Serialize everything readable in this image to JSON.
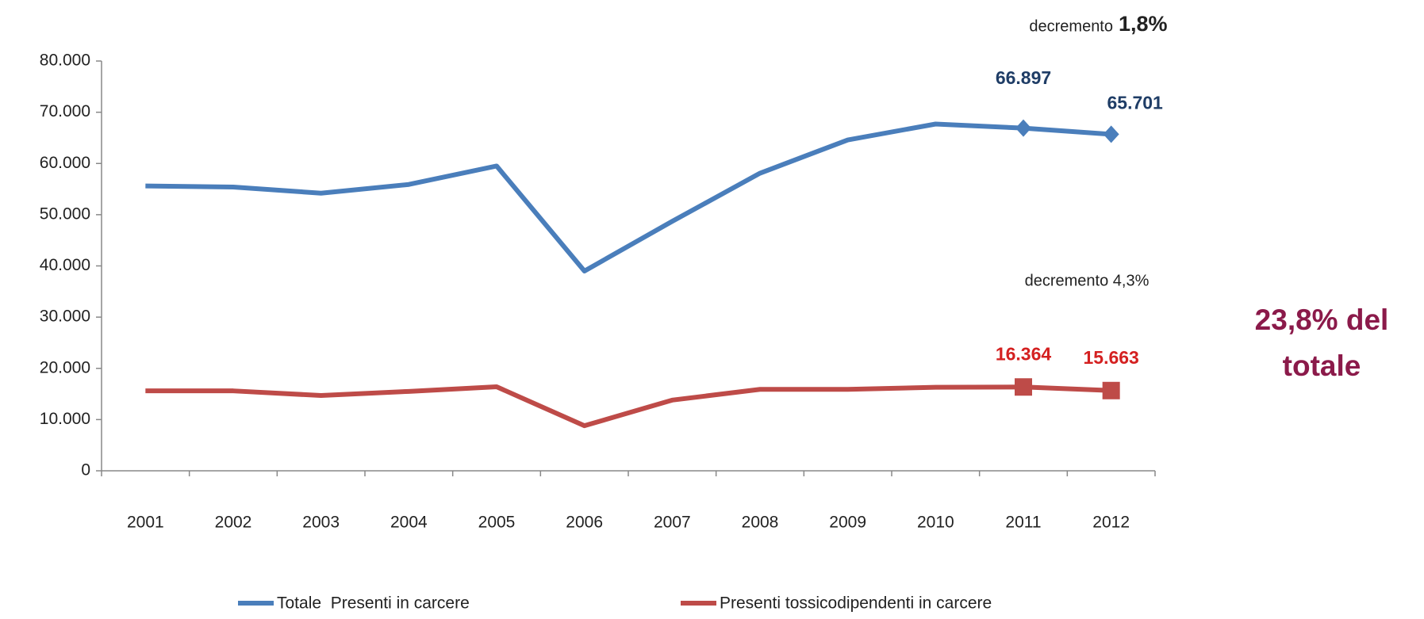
{
  "chart_data": {
    "type": "line",
    "categories": [
      "2001",
      "2002",
      "2003",
      "2004",
      "2005",
      "2006",
      "2007",
      "2008",
      "2009",
      "2010",
      "2011",
      "2012"
    ],
    "series": [
      {
        "name": "Totale  Presenti in carcere",
        "color": "#4a7ebb",
        "values": [
          55600,
          55400,
          54200,
          55900,
          59500,
          39000,
          48700,
          58100,
          64600,
          67700,
          66897,
          65701
        ],
        "value_labels": [
          null,
          null,
          null,
          null,
          null,
          null,
          null,
          null,
          null,
          null,
          "66.897",
          "65.701"
        ]
      },
      {
        "name": "Presenti tossicodipendenti in carcere",
        "color": "#be4b48",
        "values": [
          15600,
          15600,
          14700,
          15500,
          16400,
          8800,
          13800,
          15900,
          15900,
          16300,
          16364,
          15663
        ],
        "value_labels": [
          null,
          null,
          null,
          null,
          null,
          null,
          null,
          null,
          null,
          null,
          "16.364",
          "15.663"
        ]
      }
    ],
    "ylim": [
      0,
      80000
    ],
    "yticks": [
      0,
      {
        "value": 10000,
        "label": "10.000"
      },
      {
        "value": 20000,
        "label": "20.000"
      },
      {
        "value": 30000,
        "label": "30.000"
      },
      {
        "value": 40000,
        "label": "40.000"
      },
      {
        "value": 50000,
        "label": "50.000"
      },
      {
        "value": 60000,
        "label": "60.000"
      },
      {
        "value": 70000,
        "label": "70.000"
      },
      {
        "value": 80000,
        "label": "80.000"
      }
    ],
    "annotations": {
      "top_word": "decremento",
      "top_value": "1,8%",
      "bottom": "decremento 4,3%",
      "share": [
        "23,8% del",
        "totale"
      ]
    },
    "legend": "bottom"
  }
}
